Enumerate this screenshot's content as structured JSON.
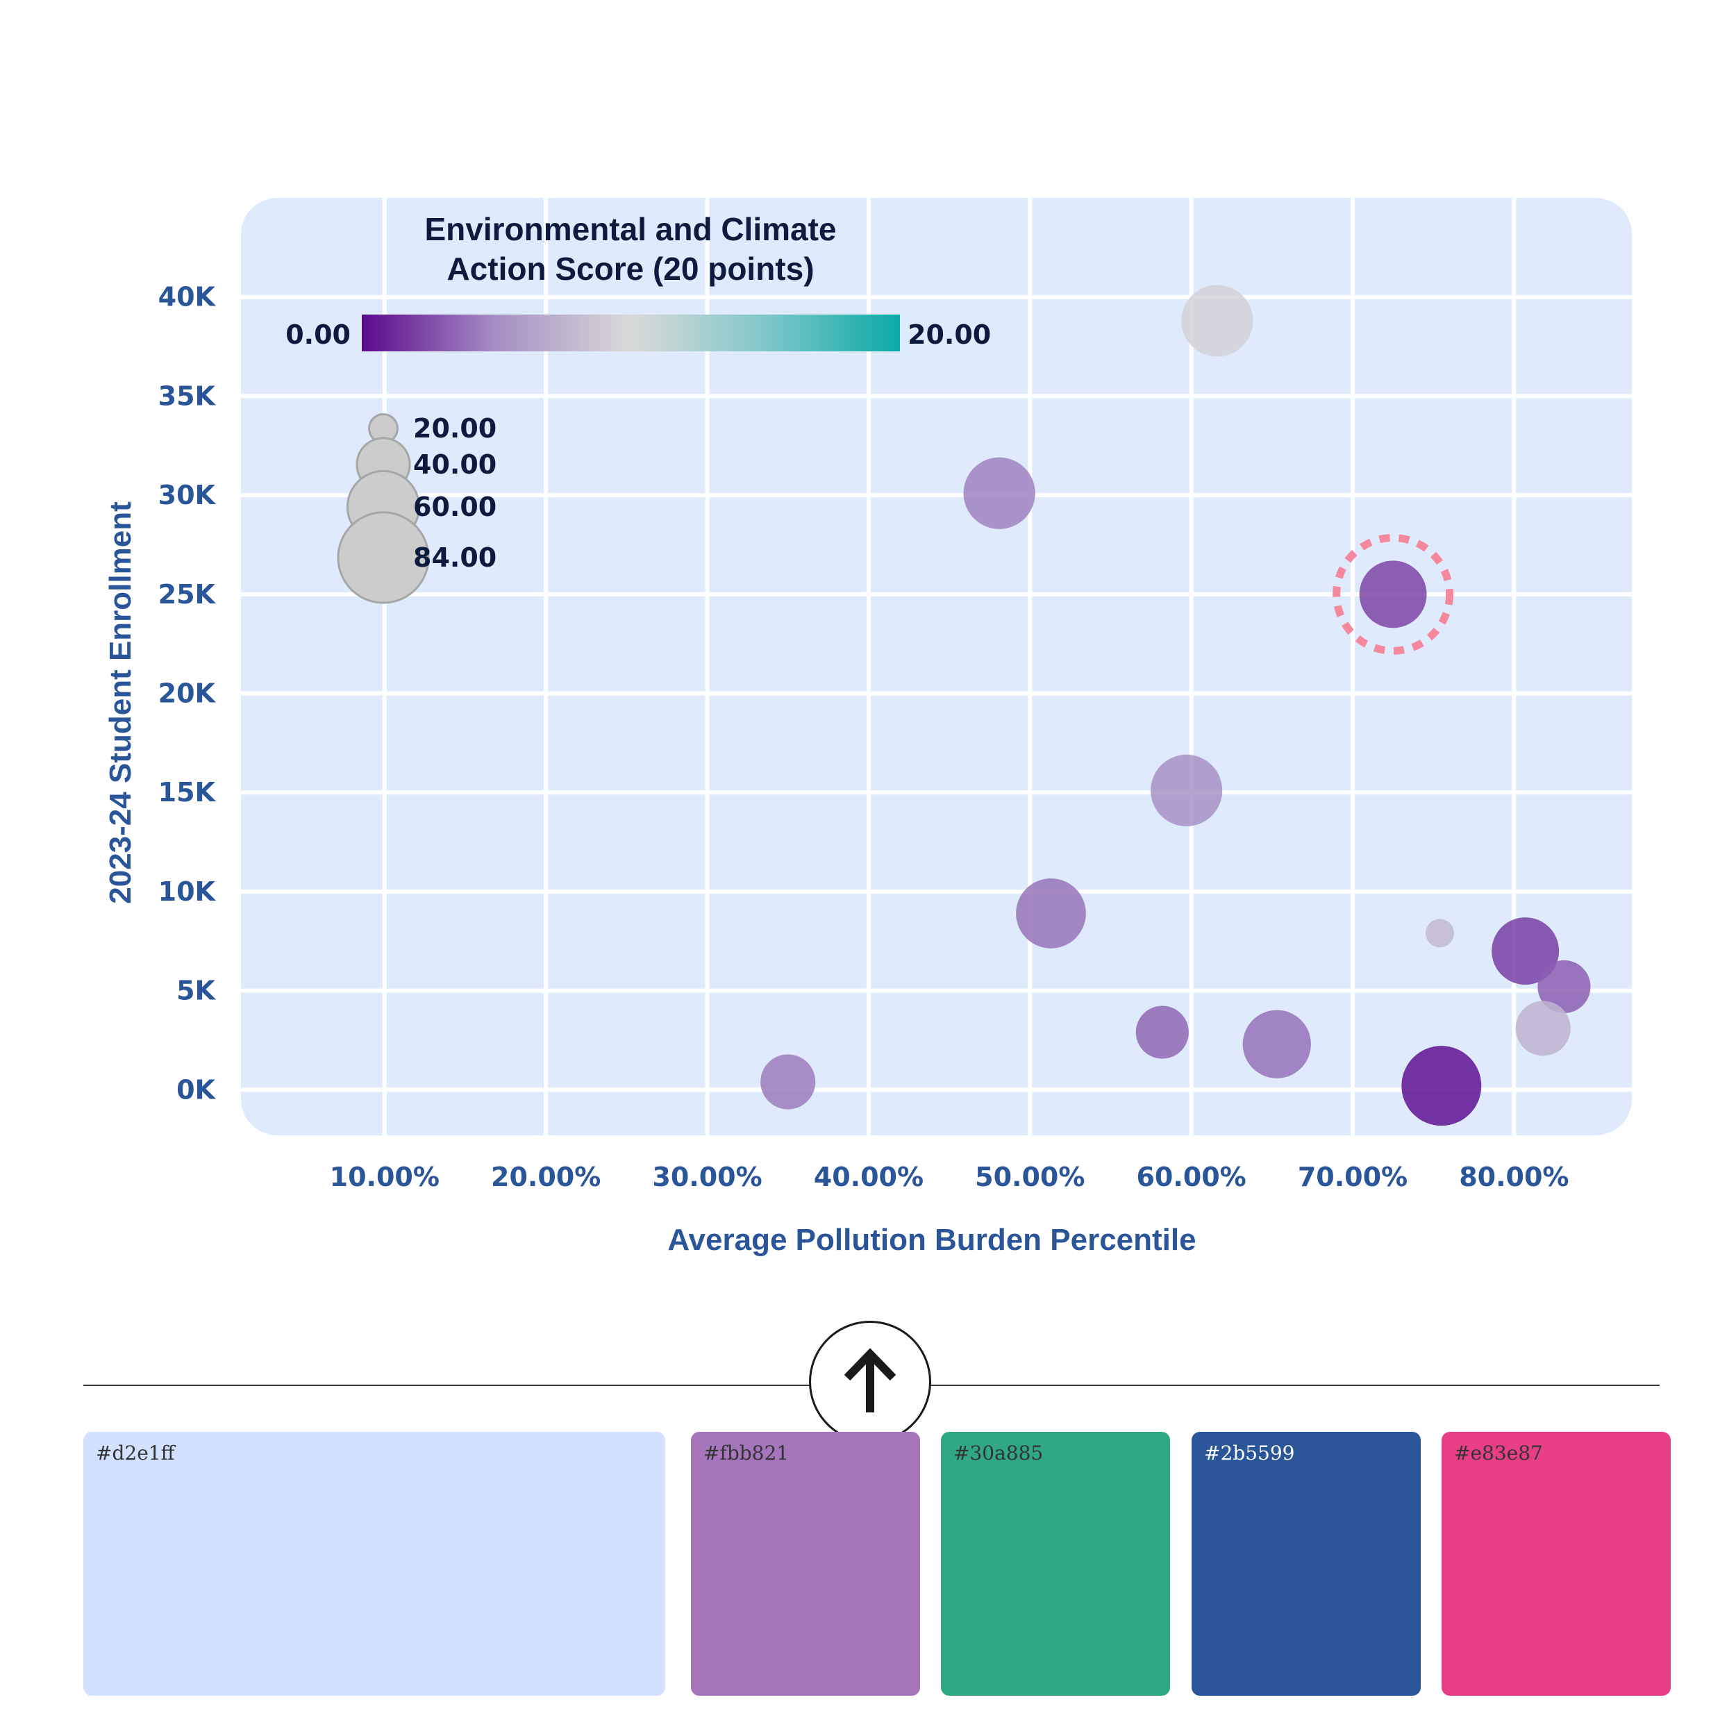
{
  "chart_data": {
    "type": "scatter",
    "xlabel": "Average Pollution Burden Percentile",
    "ylabel": "2023-24 Student Enrollment",
    "xlim": [
      1.1,
      87.3
    ],
    "ylim": [
      -2300,
      45000
    ],
    "x_ticks": [
      {
        "value": 10,
        "label": "10.00%"
      },
      {
        "value": 20,
        "label": "20.00%"
      },
      {
        "value": 30,
        "label": "30.00%"
      },
      {
        "value": 40,
        "label": "40.00%"
      },
      {
        "value": 50,
        "label": "50.00%"
      },
      {
        "value": 60,
        "label": "60.00%"
      },
      {
        "value": 70,
        "label": "70.00%"
      },
      {
        "value": 80,
        "label": "80.00%"
      }
    ],
    "y_ticks": [
      {
        "value": 0,
        "label": "0K"
      },
      {
        "value": 5000,
        "label": "5K"
      },
      {
        "value": 10000,
        "label": "10K"
      },
      {
        "value": 15000,
        "label": "15K"
      },
      {
        "value": 20000,
        "label": "20K"
      },
      {
        "value": 25000,
        "label": "25K"
      },
      {
        "value": 30000,
        "label": "30K"
      },
      {
        "value": 35000,
        "label": "35K"
      },
      {
        "value": 40000,
        "label": "40K"
      }
    ],
    "grid": true,
    "color_legend": {
      "title_lines": [
        "Environmental and Climate",
        "Action Score (20 points)"
      ],
      "min_label": "0.00",
      "max_label": "20.00",
      "min": 0,
      "max": 20,
      "colors": [
        "#5b0a8e",
        "#a68fc4",
        "#d9d9d9",
        "#80c7c9",
        "#0aa9a7"
      ]
    },
    "size_legend": {
      "entries": [
        {
          "value": 20,
          "label": "20.00"
        },
        {
          "value": 40,
          "label": "40.00"
        },
        {
          "value": 60,
          "label": "60.00"
        },
        {
          "value": 84,
          "label": "84.00"
        }
      ]
    },
    "points": [
      {
        "x": 61.6,
        "y": 38800,
        "size": 60,
        "color_value": 9.5
      },
      {
        "x": 48.1,
        "y": 30100,
        "size": 60,
        "color_value": 4.5
      },
      {
        "x": 72.5,
        "y": 25000,
        "size": 55,
        "color_value": 2.2,
        "highlighted": true
      },
      {
        "x": 59.7,
        "y": 15100,
        "size": 60,
        "color_value": 5.2
      },
      {
        "x": 51.3,
        "y": 8900,
        "size": 58,
        "color_value": 4.0
      },
      {
        "x": 75.4,
        "y": 7900,
        "size": 20,
        "color_value": 7.8
      },
      {
        "x": 80.7,
        "y": 7000,
        "size": 55,
        "color_value": 2.0
      },
      {
        "x": 83.1,
        "y": 5200,
        "size": 40,
        "color_value": 3.2
      },
      {
        "x": 58.2,
        "y": 2900,
        "size": 40,
        "color_value": 3.5
      },
      {
        "x": 65.3,
        "y": 2300,
        "size": 56,
        "color_value": 3.9
      },
      {
        "x": 81.8,
        "y": 3100,
        "size": 42,
        "color_value": 7.5
      },
      {
        "x": 35.0,
        "y": 400,
        "size": 42,
        "color_value": 4.3
      },
      {
        "x": 75.5,
        "y": 200,
        "size": 70,
        "color_value": 0.3
      }
    ]
  },
  "palette": [
    {
      "label": "#d2e1ff",
      "color": "#d2e1ff",
      "text_color": "#333333"
    },
    {
      "label": "#fbb821",
      "color": "#a676bd",
      "text_color": "#333333"
    },
    {
      "label": "#30a885",
      "color": "#30a885",
      "text_color": "#333333"
    },
    {
      "label": "#2b5599",
      "color": "#2b5599",
      "text_color": "#ffffff"
    },
    {
      "label": "#e83e87",
      "color": "#e83e87",
      "text_color": "#333333"
    }
  ],
  "colors": {
    "plot_background": "#dfebfc",
    "axis_text": "#2b5599",
    "highlight": "#f4899e",
    "size_legend_fill": "#cccccc"
  },
  "icons": {
    "up_button": "arrow-up-icon"
  }
}
